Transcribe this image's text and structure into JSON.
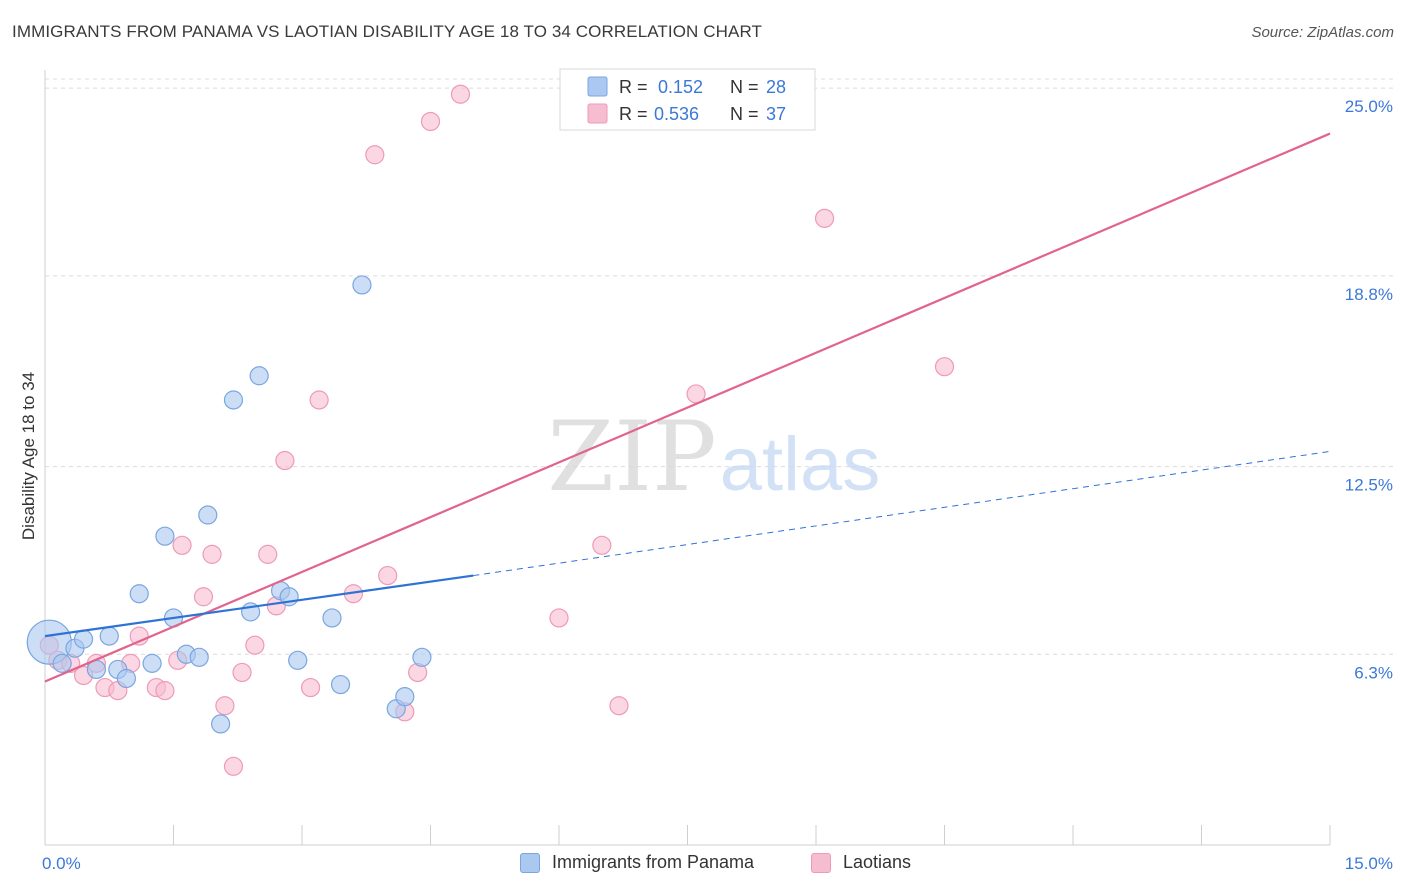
{
  "title": "IMMIGRANTS FROM PANAMA VS LAOTIAN DISABILITY AGE 18 TO 34 CORRELATION CHART",
  "source": "Source: ZipAtlas.com",
  "watermark": {
    "zip": "ZIP",
    "atlas": "atlas"
  },
  "colors": {
    "blue_fill": "#aac8f0",
    "blue_stroke": "#7aa6e0",
    "blue_line": "#2f72d6",
    "pink_fill": "#f6bdd0",
    "pink_stroke": "#ee9ab8",
    "pink_line": "#e2638c",
    "tick_label": "#3b78d8",
    "grid": "#dcdcdc"
  },
  "legend_top": {
    "rows": [
      {
        "r_label": "R = ",
        "r_value": "0.152",
        "n_label": "N = ",
        "n_value": "28"
      },
      {
        "r_label": "R = ",
        "r_value": "0.536",
        "n_label": "N = ",
        "n_value": "37"
      }
    ]
  },
  "legend_bottom": [
    {
      "label": "Immigrants from Panama"
    },
    {
      "label": "Laotians"
    }
  ],
  "chart_data": {
    "type": "scatter",
    "title": "IMMIGRANTS FROM PANAMA VS LAOTIAN DISABILITY AGE 18 TO 34 CORRELATION CHART",
    "xlabel": "",
    "ylabel": "Disability Age 18 to 34",
    "xlim": [
      0,
      15
    ],
    "ylim": [
      0,
      25.6
    ],
    "x_tick_labels": [
      {
        "value": 0,
        "label": "0.0%"
      },
      {
        "value": 15,
        "label": "15.0%"
      }
    ],
    "y_tick_labels": [
      {
        "value": 6.3,
        "label": "6.3%"
      },
      {
        "value": 12.5,
        "label": "12.5%"
      },
      {
        "value": 18.8,
        "label": "18.8%"
      },
      {
        "value": 25.0,
        "label": "25.0%"
      }
    ],
    "series": [
      {
        "name": "Immigrants from Panama",
        "color": "blue",
        "R": 0.152,
        "N": 28,
        "trend": {
          "x0": 0,
          "y0": 6.9,
          "x1": 5.0,
          "y1": 8.9,
          "dash_to_x": 15,
          "dash_to_y": 13.0
        },
        "points": [
          [
            0.05,
            6.7,
            22
          ],
          [
            0.2,
            6.0,
            9
          ],
          [
            0.35,
            6.5,
            9
          ],
          [
            0.45,
            6.8,
            9
          ],
          [
            0.6,
            5.8,
            9
          ],
          [
            0.75,
            6.9,
            9
          ],
          [
            0.85,
            5.8,
            9
          ],
          [
            0.95,
            5.5,
            9
          ],
          [
            1.1,
            8.3,
            9
          ],
          [
            1.25,
            6.0,
            9
          ],
          [
            1.4,
            10.2,
            9
          ],
          [
            1.5,
            7.5,
            9
          ],
          [
            1.65,
            6.3,
            9
          ],
          [
            1.8,
            6.2,
            9
          ],
          [
            1.9,
            10.9,
            9
          ],
          [
            2.05,
            4.0,
            9
          ],
          [
            2.2,
            14.7,
            9
          ],
          [
            2.4,
            7.7,
            9
          ],
          [
            2.5,
            15.5,
            9
          ],
          [
            2.75,
            8.4,
            9
          ],
          [
            2.85,
            8.2,
            9
          ],
          [
            2.95,
            6.1,
            9
          ],
          [
            3.35,
            7.5,
            9
          ],
          [
            3.45,
            5.3,
            9
          ],
          [
            3.7,
            18.5,
            9
          ],
          [
            4.1,
            4.5,
            9
          ],
          [
            4.2,
            4.9,
            9
          ],
          [
            4.4,
            6.2,
            9
          ]
        ]
      },
      {
        "name": "Laotians",
        "color": "pink",
        "R": 0.536,
        "N": 37,
        "trend": {
          "x0": 0,
          "y0": 5.4,
          "x1": 15,
          "y1": 23.5
        },
        "points": [
          [
            0.05,
            6.6,
            9
          ],
          [
            0.15,
            6.1,
            9
          ],
          [
            0.3,
            6.0,
            9
          ],
          [
            0.45,
            5.6,
            9
          ],
          [
            0.6,
            6.0,
            9
          ],
          [
            0.7,
            5.2,
            9
          ],
          [
            0.85,
            5.1,
            9
          ],
          [
            1.0,
            6.0,
            9
          ],
          [
            1.1,
            6.9,
            9
          ],
          [
            1.3,
            5.2,
            9
          ],
          [
            1.4,
            5.1,
            9
          ],
          [
            1.55,
            6.1,
            9
          ],
          [
            1.6,
            9.9,
            9
          ],
          [
            1.85,
            8.2,
            9
          ],
          [
            1.95,
            9.6,
            9
          ],
          [
            2.1,
            4.6,
            9
          ],
          [
            2.2,
            2.6,
            9
          ],
          [
            2.3,
            5.7,
            9
          ],
          [
            2.45,
            6.6,
            9
          ],
          [
            2.6,
            9.6,
            9
          ],
          [
            2.7,
            7.9,
            9
          ],
          [
            2.8,
            12.7,
            9
          ],
          [
            3.1,
            5.2,
            9
          ],
          [
            3.2,
            14.7,
            9
          ],
          [
            3.6,
            8.3,
            9
          ],
          [
            3.85,
            22.8,
            9
          ],
          [
            4.0,
            8.9,
            9
          ],
          [
            4.2,
            4.4,
            9
          ],
          [
            4.35,
            5.7,
            9
          ],
          [
            4.5,
            23.9,
            9
          ],
          [
            4.85,
            24.8,
            9
          ],
          [
            6.0,
            7.5,
            9
          ],
          [
            6.5,
            9.9,
            9
          ],
          [
            6.7,
            4.6,
            9
          ],
          [
            7.6,
            14.9,
            9
          ],
          [
            9.1,
            20.7,
            9
          ],
          [
            10.5,
            15.8,
            9
          ]
        ]
      }
    ]
  }
}
